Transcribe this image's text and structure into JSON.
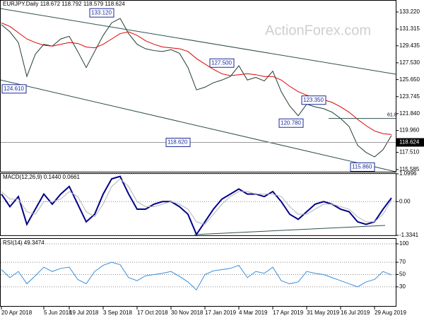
{
  "chart_data": [
    {
      "type": "line",
      "title": "EURJPY.Daily 118.672 118.792 118.579 118.624",
      "watermark": "ActionForex.com",
      "ylim": [
        115.34,
        134.56
      ],
      "yticks": [
        {
          "value": 133.22,
          "label": "133.220"
        },
        {
          "value": 131.315,
          "label": "131.315"
        },
        {
          "value": 129.435,
          "label": "129.435"
        },
        {
          "value": 127.53,
          "label": "127.530"
        },
        {
          "value": 125.65,
          "label": "125.650"
        },
        {
          "value": 123.745,
          "label": "123.745"
        },
        {
          "value": 121.84,
          "label": "121.840"
        },
        {
          "value": 119.96,
          "label": "119.960"
        },
        {
          "value": 117.51,
          "label": "117.510"
        },
        {
          "value": 115.585,
          "label": "115.585"
        }
      ],
      "grid": false,
      "series": [
        {
          "color": "#1f3d2f",
          "values": [
            131.8,
            131.0,
            129.8,
            126.0,
            128.5,
            129.6,
            129.4,
            130.2,
            130.5,
            128.8,
            127.0,
            128.8,
            130.6,
            132.0,
            132.5,
            130.8,
            129.6,
            129.1,
            128.9,
            128.8,
            129.0,
            128.6,
            127.0,
            124.5,
            124.8,
            125.3,
            125.6,
            126.0,
            127.2,
            125.6,
            125.9,
            125.5,
            126.6,
            124.3,
            122.7,
            121.6,
            122.9,
            122.6,
            122.4,
            122.0,
            121.3,
            120.4,
            118.3,
            117.5,
            117.0,
            117.8,
            119.4
          ]
        },
        {
          "color": "#e00000",
          "values": [
            132.0,
            131.6,
            130.9,
            130.2,
            129.8,
            129.5,
            129.4,
            129.6,
            129.8,
            129.7,
            129.3,
            129.2,
            129.6,
            130.2,
            130.8,
            131.0,
            130.6,
            130.0,
            129.6,
            129.3,
            129.2,
            129.1,
            128.8,
            128.0,
            127.4,
            126.8,
            126.3,
            126.1,
            126.2,
            126.3,
            126.2,
            126.0,
            126.0,
            125.6,
            124.9,
            124.3,
            123.9,
            123.6,
            123.4,
            123.1,
            122.6,
            122.0,
            121.2,
            120.5,
            119.9,
            119.6,
            119.5
          ]
        }
      ],
      "annotations": [
        {
          "value": 133.12,
          "label": "133.120"
        },
        {
          "value": 127.5,
          "label": "127.500"
        },
        {
          "value": 124.61,
          "label": "124.610"
        },
        {
          "value": 123.35,
          "label": "123.350"
        },
        {
          "value": 120.78,
          "label": "120.780"
        },
        {
          "value": 118.62,
          "label": "118.620"
        },
        {
          "value": 115.86,
          "label": "115.860"
        }
      ],
      "fib": {
        "label": 61.8,
        "level": 121.3
      },
      "last": {
        "value": 118.624,
        "label": "118.624"
      }
    },
    {
      "type": "line",
      "title": "MACD(12,26,9) 0.1440 0.0661",
      "ylim": [
        -1.3341,
        1.0996
      ],
      "yticks": [
        1.0996,
        {
          "value": 0,
          "label": "0.00"
        },
        -1.3341
      ],
      "grid": true,
      "series": [
        {
          "color": "#00008b",
          "values": [
            0.3,
            -0.2,
            0.2,
            -0.9,
            -0.3,
            0.3,
            -0.1,
            0.3,
            0.6,
            -0.1,
            -0.8,
            -0.5,
            0.3,
            0.9,
            1.0,
            0.3,
            -0.3,
            -0.3,
            -0.1,
            0.0,
            0.0,
            -0.2,
            -0.5,
            -1.3,
            -0.8,
            -0.3,
            0.1,
            0.3,
            0.5,
            0.3,
            0.3,
            0.2,
            0.4,
            0.0,
            -0.5,
            -0.7,
            -0.4,
            -0.1,
            0.0,
            -0.1,
            -0.3,
            -0.4,
            -0.8,
            -0.9,
            -0.8,
            -0.3,
            0.144
          ]
        },
        {
          "color": "#b4b4b4",
          "values": [
            0.4,
            0.1,
            0.1,
            -0.4,
            -0.5,
            0.0,
            0.0,
            0.1,
            0.4,
            0.2,
            -0.4,
            -0.6,
            -0.1,
            0.6,
            0.9,
            0.6,
            0.0,
            -0.2,
            -0.2,
            -0.1,
            0.0,
            -0.1,
            -0.3,
            -0.8,
            -0.9,
            -0.5,
            -0.1,
            0.2,
            0.4,
            0.4,
            0.3,
            0.3,
            0.3,
            0.2,
            -0.2,
            -0.5,
            -0.5,
            -0.3,
            -0.1,
            -0.1,
            -0.2,
            -0.3,
            -0.6,
            -0.8,
            -0.8,
            -0.5,
            0.0661
          ]
        }
      ]
    },
    {
      "type": "line",
      "title": "RSI(14) 49.3474",
      "ylim": [
        0,
        100
      ],
      "yticks": [
        30,
        50,
        70,
        100
      ],
      "grid": true,
      "categories": [
        "20 Apr 2018",
        null,
        null,
        null,
        null,
        "5 Jun 2018",
        null,
        null,
        "19 Jul 2018",
        null,
        null,
        null,
        "3 Sep 2018",
        null,
        null,
        null,
        "17 Oct 2018",
        null,
        null,
        null,
        "30 Nov 2018",
        null,
        null,
        null,
        "17 Jan 2019",
        null,
        null,
        null,
        "4 Mar 2019",
        null,
        null,
        null,
        "17 Apr 2019",
        null,
        null,
        null,
        "31 May 2019",
        null,
        null,
        null,
        "16 Jul 2019",
        null,
        null,
        null,
        "29 Aug 2019",
        null,
        null
      ],
      "series": [
        {
          "color": "#3a8fd9",
          "values": [
            58,
            45,
            55,
            35,
            48,
            62,
            55,
            60,
            62,
            42,
            35,
            55,
            65,
            70,
            66,
            45,
            40,
            48,
            50,
            52,
            55,
            47,
            38,
            25,
            50,
            56,
            58,
            60,
            65,
            45,
            55,
            52,
            62,
            40,
            35,
            38,
            55,
            52,
            50,
            45,
            40,
            35,
            30,
            38,
            42,
            55,
            49.3474
          ]
        }
      ]
    }
  ]
}
